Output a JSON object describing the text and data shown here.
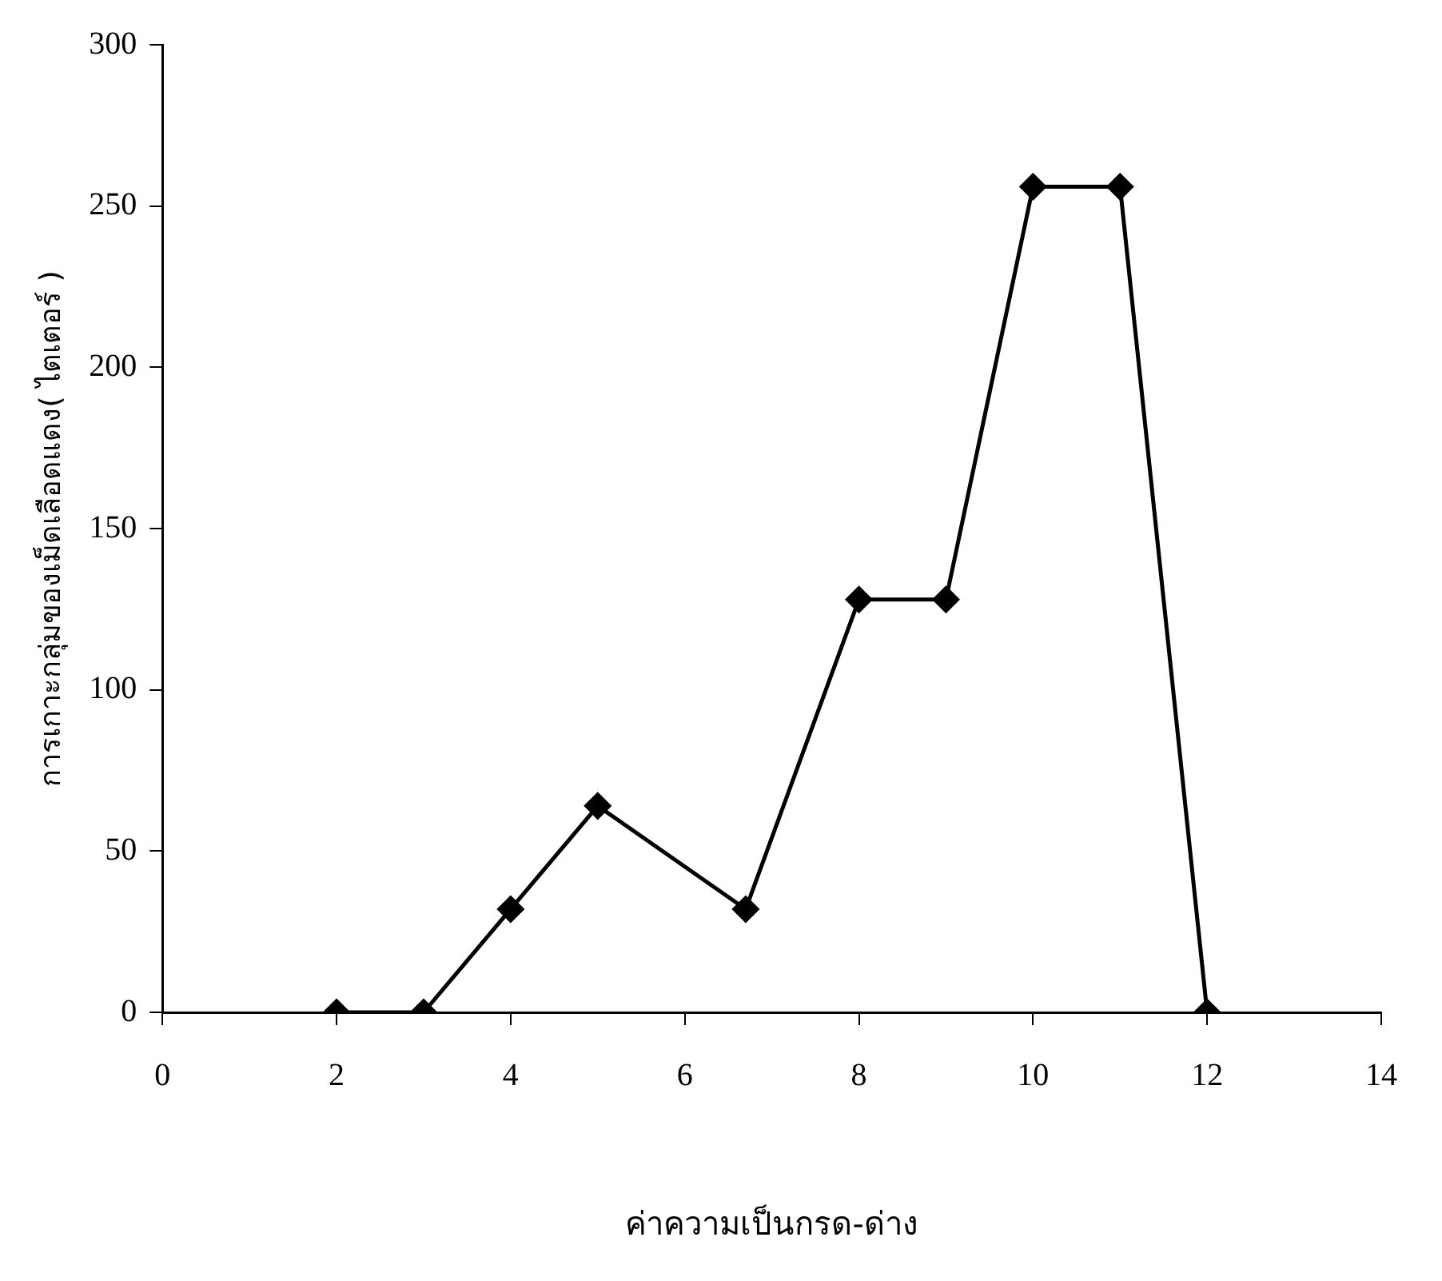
{
  "chart_data": {
    "type": "line",
    "xlabel": "ค่าความเป็นกรด-ด่าง",
    "ylabel": "การเกาะกลุ่มของเม็ดเลือดแดง( ไตเตอร์ )",
    "x": [
      2,
      3,
      4,
      5,
      6.7,
      8,
      9,
      10,
      11,
      12
    ],
    "series": [
      {
        "color": "#000000",
        "values": [
          0,
          0,
          32,
          64,
          32,
          128,
          128,
          256,
          256,
          0
        ]
      }
    ],
    "xlim": [
      0,
      14
    ],
    "xticks": [
      0,
      2,
      4,
      6,
      8,
      10,
      12,
      14
    ],
    "ylim": [
      0,
      300
    ],
    "yticks": [
      0,
      50,
      100,
      150,
      200,
      250,
      300
    ],
    "grid": false,
    "legend": false,
    "marker": "diamond",
    "line_style": "solid"
  }
}
